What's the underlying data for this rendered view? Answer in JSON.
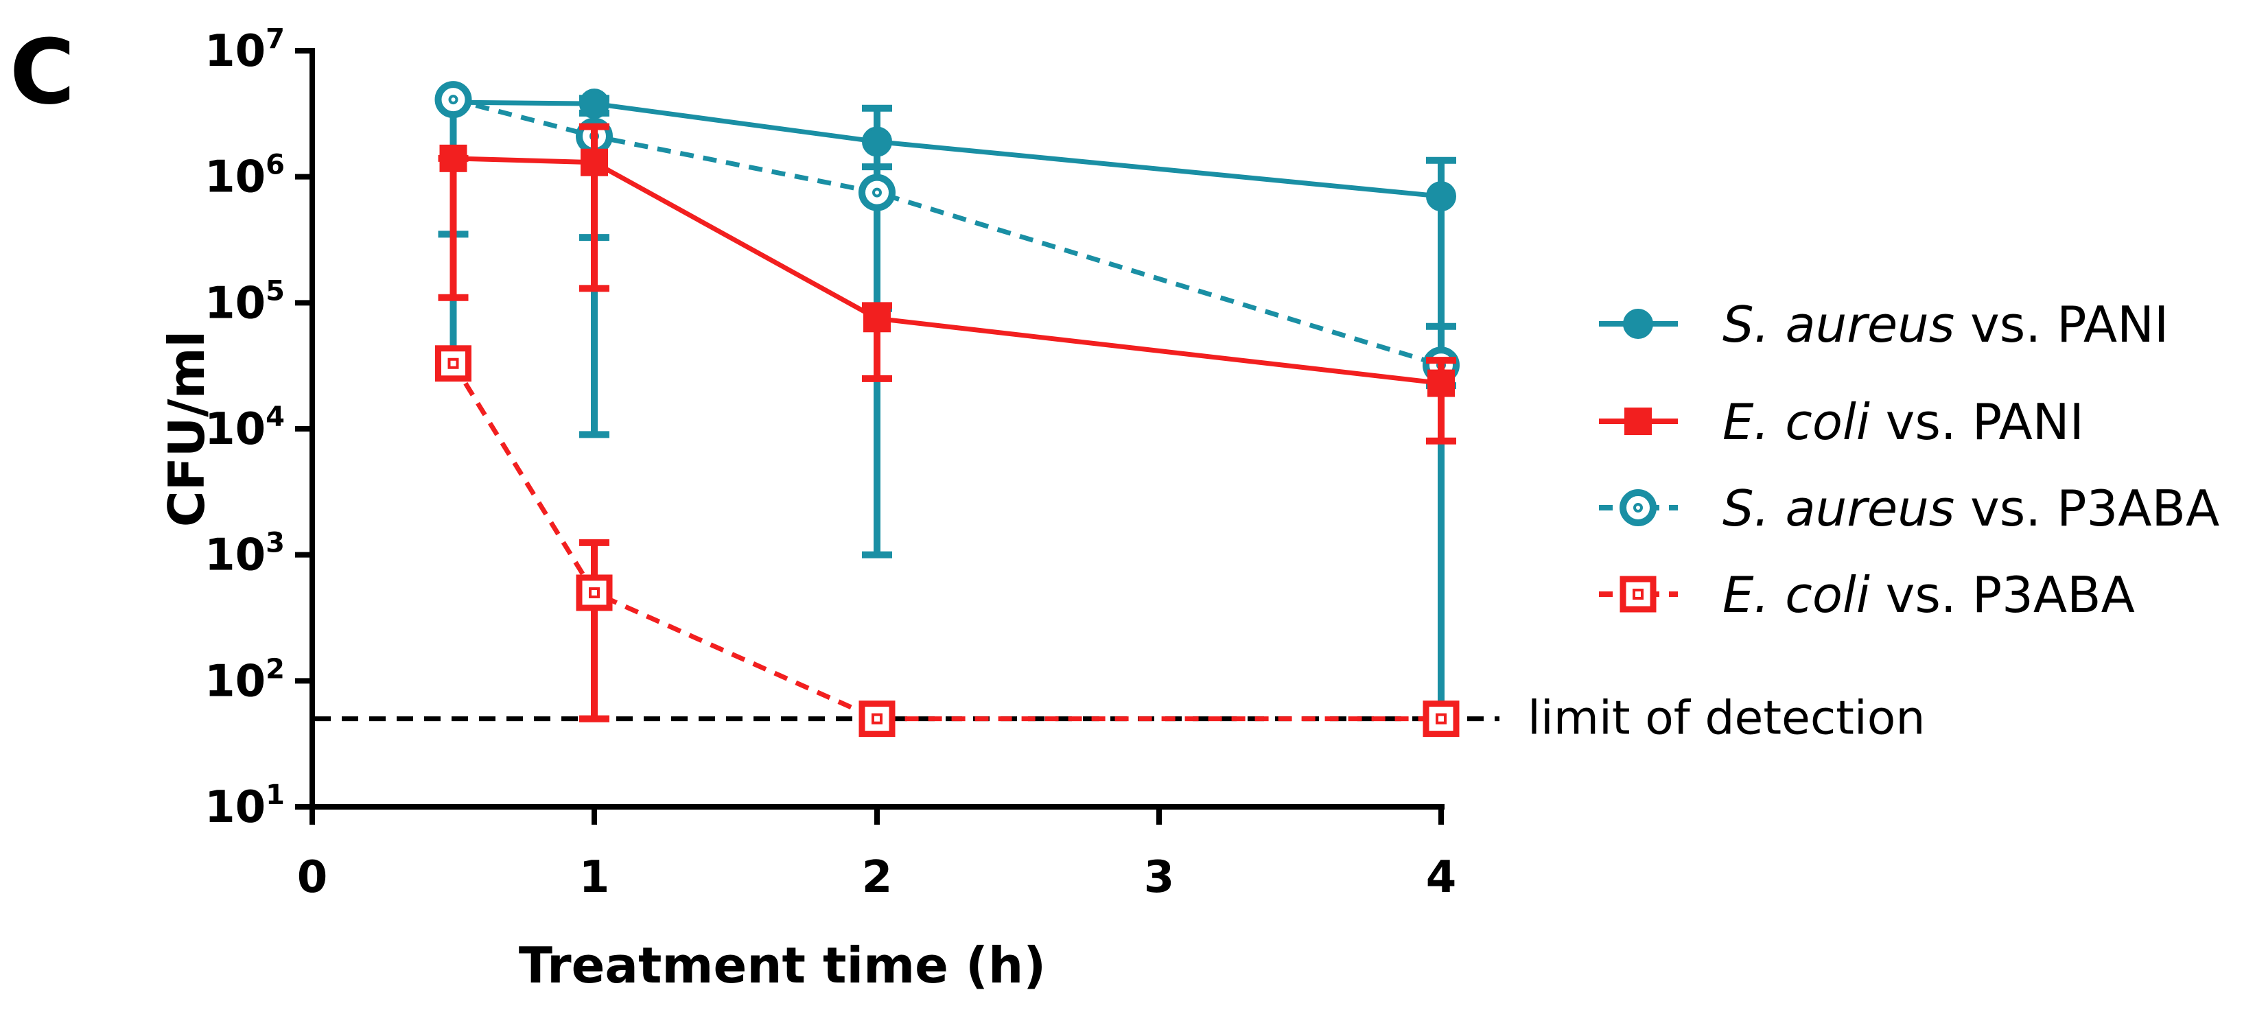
{
  "panel_label": "C",
  "colors": {
    "teal": "#1a8fa4",
    "red": "#f21f1f",
    "black": "#000000"
  },
  "chart_data": {
    "type": "line",
    "title": "",
    "xlabel": "Treatment time (h)",
    "ylabel": "CFU/ml",
    "yscale": "log",
    "ylim": [
      10,
      10000000
    ],
    "x_ticks": [
      {
        "value": 0,
        "label": "0"
      },
      {
        "value": 1,
        "label": "1"
      },
      {
        "value": 2,
        "label": "2"
      },
      {
        "value": 3,
        "label": "3"
      },
      {
        "value": 4,
        "label": "4"
      }
    ],
    "y_ticks": [
      {
        "value": 10,
        "base": "10",
        "exp": "1"
      },
      {
        "value": 100,
        "base": "10",
        "exp": "2"
      },
      {
        "value": 1000,
        "base": "10",
        "exp": "3"
      },
      {
        "value": 10000,
        "base": "10",
        "exp": "4"
      },
      {
        "value": 100000,
        "base": "10",
        "exp": "5"
      },
      {
        "value": 1000000,
        "base": "10",
        "exp": "6"
      },
      {
        "value": 10000000,
        "base": "10",
        "exp": "7"
      }
    ],
    "limit_of_detection": {
      "value": 50,
      "label": "limit of detection"
    },
    "series": [
      {
        "name": "S. aureus vs. PANI",
        "legend_italic": "S. aureus",
        "legend_rest": " vs. PANI",
        "color": "#1a8fa4",
        "marker": "circle-filled",
        "dashed": false,
        "points": [
          {
            "x": 0.5,
            "y": 3900000,
            "err_low": 350000,
            "err_high": 4500000
          },
          {
            "x": 1,
            "y": 3800000,
            "err_low": 330000,
            "err_high": 4200000
          },
          {
            "x": 2,
            "y": 1900000,
            "err_low": 1000,
            "err_high": 3500000
          },
          {
            "x": 4,
            "y": 700000,
            "err_low": 55,
            "err_high": 1350000
          }
        ]
      },
      {
        "name": "E. coli vs. PANI",
        "legend_italic": "E. coli",
        "legend_rest": " vs. PANI",
        "color": "#f21f1f",
        "marker": "square-filled",
        "dashed": false,
        "points": [
          {
            "x": 0.5,
            "y": 1400000,
            "err_low": 110000,
            "err_high": 1400000
          },
          {
            "x": 1,
            "y": 1300000,
            "err_low": 130000,
            "err_high": 2500000
          },
          {
            "x": 2,
            "y": 75000,
            "err_low": 25000,
            "err_high": 95000
          },
          {
            "x": 4,
            "y": 23000,
            "err_low": 8000,
            "err_high": 35000
          }
        ]
      },
      {
        "name": "S. aureus vs. P3ABA",
        "legend_italic": "S. aureus",
        "legend_rest": " vs. P3ABA",
        "color": "#1a8fa4",
        "marker": "circle-open",
        "dashed": true,
        "points": [
          {
            "x": 0.5,
            "y": 4100000,
            "err_low": 40000,
            "err_high": 4500000
          },
          {
            "x": 1,
            "y": 2100000,
            "err_low": 9000,
            "err_high": 3200000
          },
          {
            "x": 2,
            "y": 750000,
            "err_low": 90000,
            "err_high": 1200000
          },
          {
            "x": 4,
            "y": 32000,
            "err_low": 22000,
            "err_high": 65000
          }
        ]
      },
      {
        "name": "E. coli vs. P3ABA",
        "legend_italic": "E. coli",
        "legend_rest": " vs. P3ABA",
        "color": "#f21f1f",
        "marker": "square-open",
        "dashed": true,
        "points": [
          {
            "x": 0.5,
            "y": 33000,
            "err_low": 33000,
            "err_high": 33000
          },
          {
            "x": 1,
            "y": 500,
            "err_low": 50,
            "err_high": 1250
          },
          {
            "x": 2,
            "y": 50,
            "err_low": 50,
            "err_high": 50
          },
          {
            "x": 4,
            "y": 50,
            "err_low": 50,
            "err_high": 50
          }
        ]
      }
    ]
  }
}
